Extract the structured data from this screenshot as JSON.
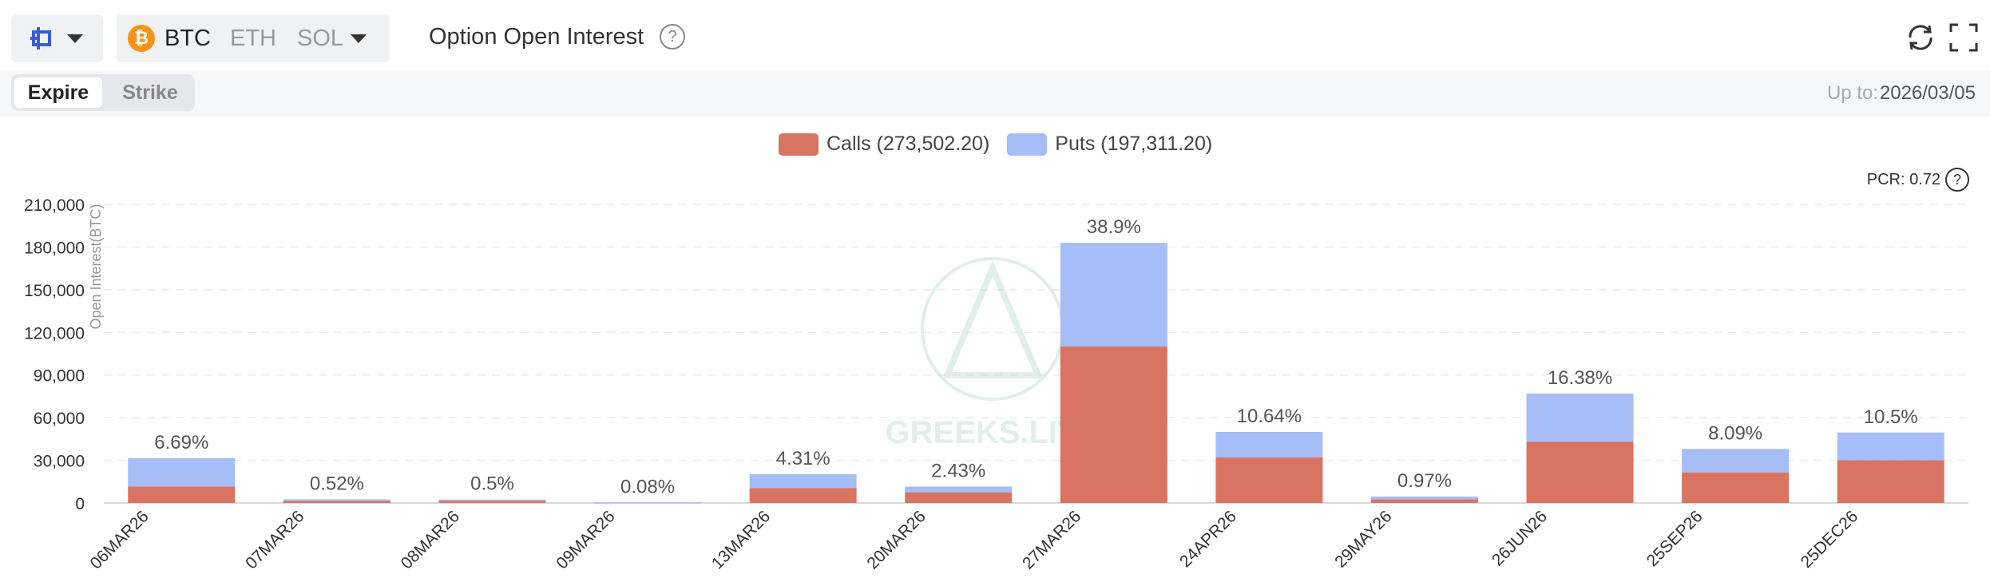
{
  "header": {
    "coins": [
      "BTC",
      "ETH",
      "SOL"
    ],
    "active_coin": "BTC",
    "title": "Option Open Interest",
    "help_glyph": "?"
  },
  "subheader": {
    "tabs": [
      "Expire",
      "Strike"
    ],
    "active_tab": "Expire",
    "upto_label": "Up to:",
    "upto_value": "2026/03/05"
  },
  "legend": {
    "calls": "Calls (273,502.20)",
    "puts": "Puts (197,311.20)"
  },
  "pcr": "PCR: 0.72",
  "watermark": "GREEKS.LIVE",
  "colors": {
    "calls": "#d87461",
    "puts": "#a6bdf7",
    "accent": "#3b5bdb",
    "btc": "#f7931a"
  },
  "icons": [
    "exchange-logo-icon",
    "chevron-down-icon",
    "bitcoin-icon",
    "help-icon",
    "refresh-icon",
    "fullscreen-icon"
  ],
  "chart_data": {
    "type": "bar",
    "stacked": true,
    "categories": [
      "06MAR26",
      "07MAR26",
      "08MAR26",
      "09MAR26",
      "13MAR26",
      "20MAR26",
      "27MAR26",
      "24APR26",
      "29MAY26",
      "26JUN26",
      "25SEP26",
      "25DEC26"
    ],
    "series": [
      {
        "name": "Calls",
        "values": [
          11500,
          1500,
          1600,
          300,
          10500,
          7500,
          110000,
          32000,
          2500,
          43000,
          21500,
          30000
        ]
      },
      {
        "name": "Puts",
        "values": [
          20000,
          1000,
          800,
          100,
          9800,
          4000,
          73000,
          18000,
          2000,
          34000,
          16500,
          19500
        ]
      }
    ],
    "bar_labels": [
      "6.69%",
      "0.52%",
      "0.5%",
      "0.08%",
      "4.31%",
      "2.43%",
      "38.9%",
      "10.64%",
      "0.97%",
      "16.38%",
      "8.09%",
      "10.5%"
    ],
    "ylabel": "Open Interest(BTC)",
    "yticks": [
      "0",
      "30,000",
      "60,000",
      "90,000",
      "120,000",
      "150,000",
      "180,000",
      "210,000"
    ],
    "ylim": [
      0,
      210000
    ],
    "grid": true
  }
}
